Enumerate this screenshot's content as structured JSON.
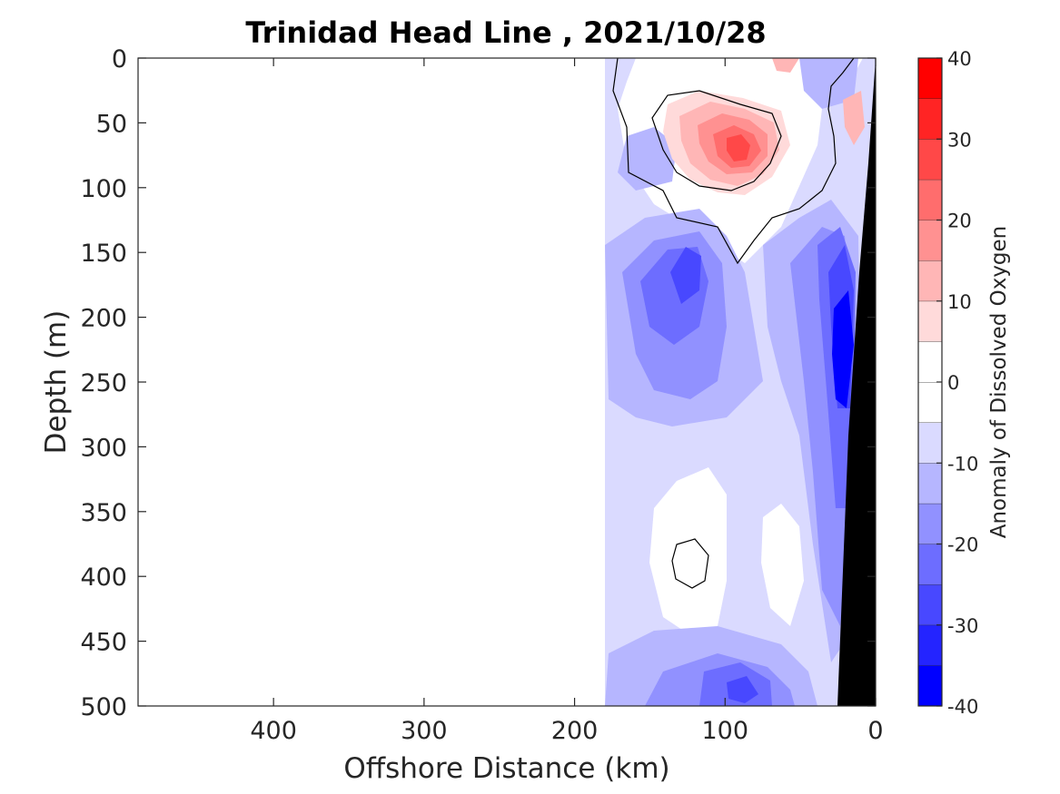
{
  "chart_data": {
    "type": "heatmap",
    "title": "Trinidad Head Line , 2021/10/28",
    "xlabel": "Offshore Distance (km)",
    "ylabel": "Depth (m)",
    "xlim": [
      490,
      0
    ],
    "ylim": [
      0,
      500
    ],
    "x_reversed": true,
    "y_reversed": true,
    "xticks": [
      400,
      300,
      200,
      100,
      0
    ],
    "yticks": [
      0,
      50,
      100,
      150,
      200,
      250,
      300,
      350,
      400,
      450,
      500
    ],
    "colorbar": {
      "label": "Anomaly of Dissolved Oxygen",
      "range": [
        -40,
        40
      ],
      "levels": [
        -40,
        -35,
        -30,
        -25,
        -20,
        -15,
        -10,
        -5,
        0,
        5,
        10,
        15,
        20,
        25,
        30,
        35,
        40
      ],
      "ticks": [
        40,
        30,
        20,
        10,
        0,
        -10,
        -20,
        -30,
        -40
      ],
      "colors": [
        "#0000ff",
        "#2424ff",
        "#4848ff",
        "#6d6dff",
        "#9191ff",
        "#b6b6ff",
        "#dadaff",
        "#ffffff",
        "#ffffff",
        "#ffdada",
        "#ffb6b6",
        "#ff9191",
        "#ff6d6d",
        "#ff4848",
        "#ff2424",
        "#ff0000"
      ]
    },
    "data_extent_km": [
      0,
      180
    ],
    "zero_contour": true,
    "bathymetry_color": "#000000",
    "features": [
      {
        "kind": "positive anomaly core",
        "x_km": 90,
        "depth_m": 65,
        "value": 25
      },
      {
        "kind": "negative anomaly core",
        "x_km": 125,
        "depth_m": 175,
        "value": -25
      },
      {
        "kind": "negative anomaly core",
        "x_km": 25,
        "depth_m": 230,
        "value": -35
      },
      {
        "kind": "negative anomaly core",
        "x_km": 100,
        "depth_m": 490,
        "value": -30
      },
      {
        "kind": "near-zero patch",
        "x_km": 120,
        "depth_m": 390,
        "value": 0
      }
    ]
  }
}
